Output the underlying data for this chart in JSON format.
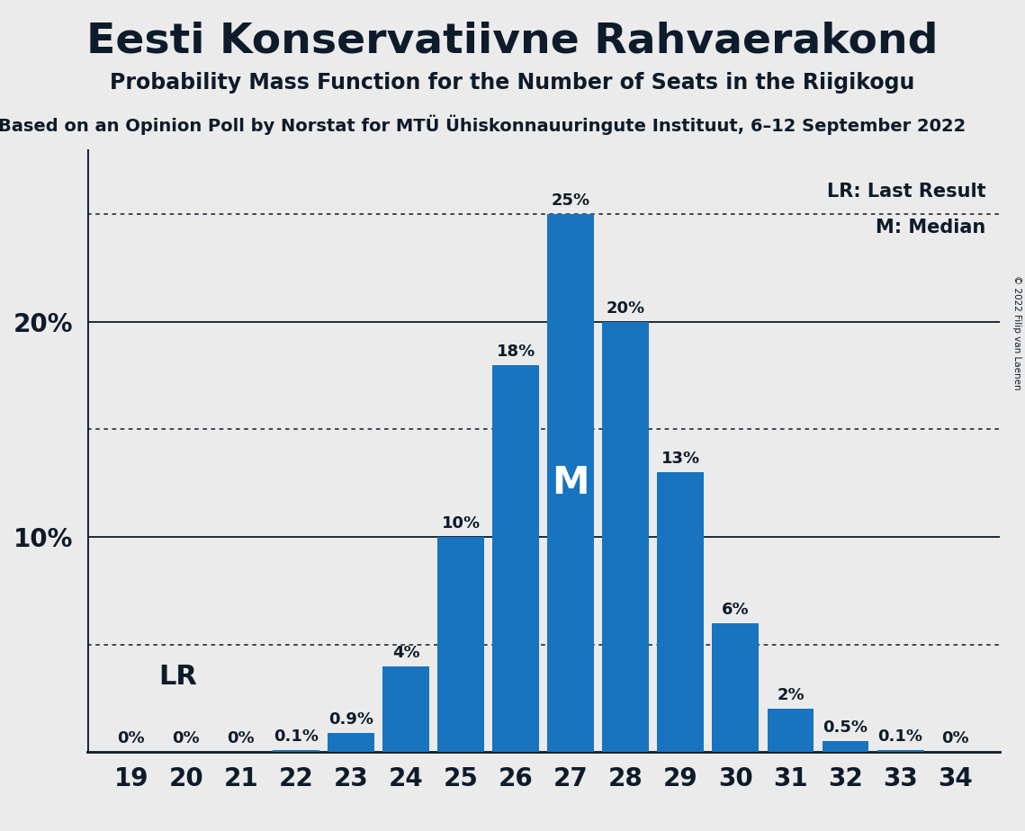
{
  "title": "Eesti Konservatiivne Rahvaerakond",
  "subtitle": "Probability Mass Function for the Number of Seats in the Riigikogu",
  "source_line": "Based on an Opinion Poll by Norstat for MTÜ Ühiskonnauuringute Instituut, 6–12 September 2022",
  "copyright": "© 2022 Filip van Laenen",
  "seats": [
    19,
    20,
    21,
    22,
    23,
    24,
    25,
    26,
    27,
    28,
    29,
    30,
    31,
    32,
    33,
    34
  ],
  "probabilities": [
    0.0,
    0.0,
    0.0,
    0.1,
    0.9,
    4.0,
    10.0,
    18.0,
    25.0,
    20.0,
    13.0,
    6.0,
    2.0,
    0.5,
    0.1,
    0.0
  ],
  "bar_color": "#1874be",
  "bar_labels": [
    "0%",
    "0%",
    "0%",
    "0.1%",
    "0.9%",
    "4%",
    "10%",
    "18%",
    "25%",
    "20%",
    "13%",
    "6%",
    "2%",
    "0.5%",
    "0.1%",
    "0%"
  ],
  "median_seat": 27,
  "lr_label": "LR",
  "legend_lr": "LR: Last Result",
  "legend_m": "M: Median",
  "solid_lines": [
    10,
    20
  ],
  "dotted_lines": [
    5,
    15,
    25
  ],
  "ylim": [
    0,
    28
  ],
  "background_color": "#ebebeb",
  "title_fontsize": 34,
  "subtitle_fontsize": 17,
  "source_fontsize": 14,
  "bar_label_fontsize": 13,
  "axis_tick_fontsize": 20,
  "legend_fontsize": 15,
  "font_color": "#0d1b2a"
}
